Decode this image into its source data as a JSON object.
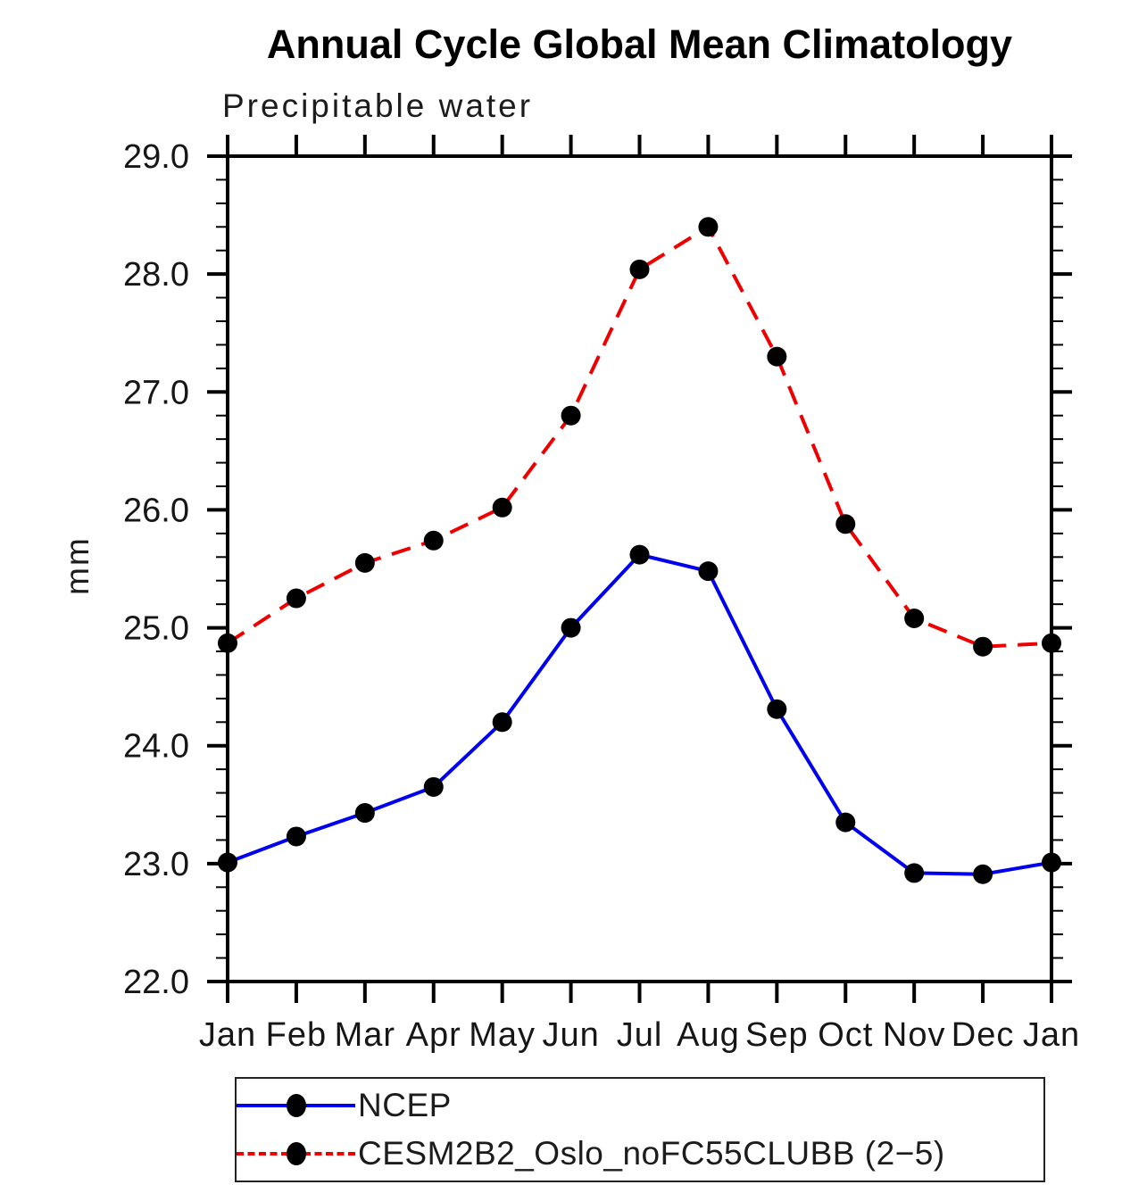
{
  "chart_data": {
    "type": "line",
    "title": "Annual Cycle Global Mean Climatology",
    "subtitle": "Precipitable water",
    "ylabel": "mm",
    "xlabel": "",
    "categories": [
      "Jan",
      "Feb",
      "Mar",
      "Apr",
      "May",
      "Jun",
      "Jul",
      "Aug",
      "Sep",
      "Oct",
      "Nov",
      "Dec",
      "Jan"
    ],
    "ylim": [
      22.0,
      29.0
    ],
    "ytick_major": 1.0,
    "ytick_minor": 0.2,
    "ytick_labels": [
      "22.0",
      "23.0",
      "24.0",
      "25.0",
      "26.0",
      "27.0",
      "28.0",
      "29.0"
    ],
    "grid": false,
    "legend_position": "bottom",
    "marker": "filled-circle",
    "marker_color": "#000000",
    "series": [
      {
        "name": "NCEP",
        "color": "#0000ee",
        "style": "solid",
        "values": [
          23.01,
          23.23,
          23.43,
          23.65,
          24.2,
          25.0,
          25.62,
          25.48,
          24.31,
          23.35,
          22.92,
          22.91,
          23.01
        ]
      },
      {
        "name": "CESM2B2_Oslo_noFC55CLUBB (2−5)",
        "color": "#ee0000",
        "style": "dashed",
        "values": [
          24.87,
          25.25,
          25.55,
          25.74,
          26.02,
          26.8,
          28.04,
          28.4,
          27.3,
          25.88,
          25.08,
          24.84,
          24.87
        ]
      }
    ]
  }
}
